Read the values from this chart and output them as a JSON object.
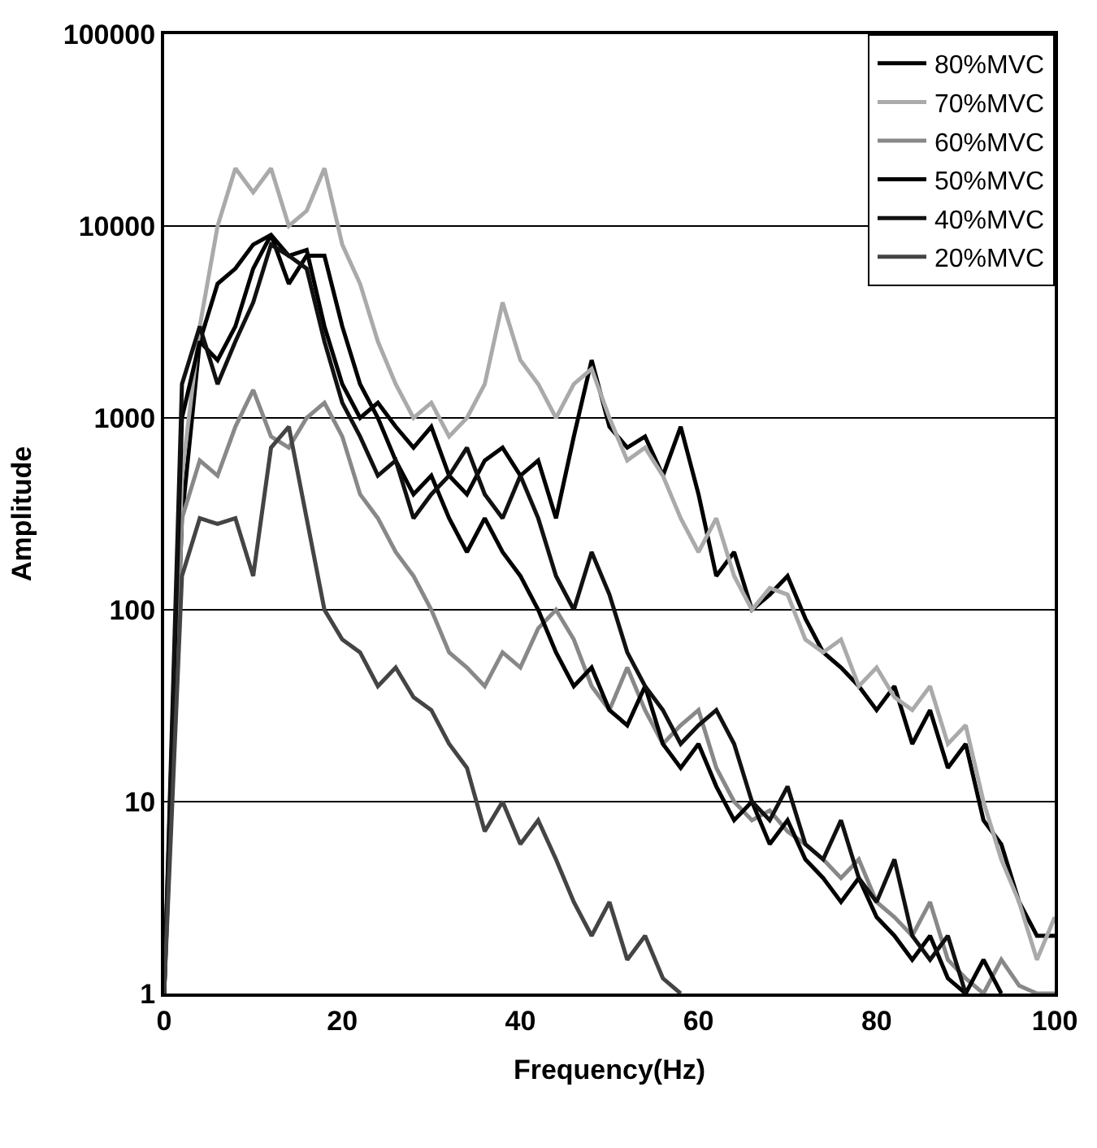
{
  "chart_data": {
    "type": "line",
    "xlabel": "Frequency(Hz)",
    "ylabel": "Amplitude",
    "log": "y",
    "x": [
      0,
      2,
      4,
      6,
      8,
      10,
      12,
      14,
      16,
      18,
      20,
      22,
      24,
      26,
      28,
      30,
      32,
      34,
      36,
      38,
      40,
      42,
      44,
      46,
      48,
      50,
      52,
      54,
      56,
      58,
      60,
      62,
      64,
      66,
      68,
      70,
      72,
      74,
      76,
      78,
      80,
      82,
      84,
      86,
      88,
      90,
      92,
      94,
      96,
      98,
      100
    ],
    "xlim": [
      0,
      100
    ],
    "xticks": [
      0,
      20,
      40,
      60,
      80,
      100
    ],
    "ylim": [
      1,
      100000
    ],
    "yticks": [
      1,
      10,
      100,
      1000,
      10000,
      100000
    ],
    "grid": "y",
    "legend": "top right",
    "line_style": "solid",
    "marker": "none",
    "series": [
      {
        "name": "80%MVC",
        "color": "#000000",
        "values": [
          1,
          300,
          2500,
          5000,
          6000,
          8000,
          9000,
          7000,
          7500,
          3000,
          1500,
          1000,
          1200,
          900,
          700,
          900,
          500,
          400,
          600,
          700,
          500,
          600,
          300,
          800,
          2000,
          900,
          700,
          800,
          500,
          900,
          400,
          150,
          200,
          100,
          120,
          150,
          90,
          60,
          50,
          40,
          30,
          40,
          20,
          30,
          15,
          20,
          8,
          6,
          3,
          2,
          2
        ]
      },
      {
        "name": "70%MVC",
        "color": "#aaaaaa",
        "values": [
          1,
          500,
          3000,
          10000,
          20000,
          15000,
          20000,
          10000,
          12000,
          20000,
          8000,
          5000,
          2500,
          1500,
          1000,
          1200,
          800,
          1000,
          1500,
          4000,
          2000,
          1500,
          1000,
          1500,
          1800,
          1000,
          600,
          700,
          500,
          300,
          200,
          300,
          150,
          100,
          130,
          120,
          70,
          60,
          70,
          40,
          50,
          35,
          30,
          40,
          20,
          25,
          10,
          5,
          3,
          1.5,
          2.5
        ]
      },
      {
        "name": "60%MVC",
        "color": "#888888",
        "values": [
          1,
          300,
          600,
          500,
          900,
          1400,
          800,
          700,
          1000,
          1200,
          800,
          400,
          300,
          200,
          150,
          100,
          60,
          50,
          40,
          60,
          50,
          80,
          100,
          70,
          40,
          30,
          50,
          30,
          20,
          25,
          30,
          15,
          10,
          8,
          9,
          7,
          6,
          5,
          4,
          5,
          3,
          2.5,
          2,
          3,
          1.5,
          1.2,
          1,
          1.5,
          1.1,
          1,
          1
        ]
      },
      {
        "name": "50%MVC",
        "color": "#000000",
        "values": [
          1,
          1000,
          2500,
          2000,
          3000,
          6000,
          9000,
          5000,
          7000,
          7000,
          3000,
          1500,
          1000,
          600,
          400,
          500,
          300,
          200,
          300,
          200,
          150,
          100,
          60,
          40,
          50,
          30,
          25,
          40,
          20,
          15,
          20,
          12,
          8,
          10,
          6,
          8,
          5,
          4,
          3,
          4,
          2.5,
          2,
          1.5,
          2,
          1.2,
          1,
          1.5,
          1,
          null,
          null,
          null
        ]
      },
      {
        "name": "40%MVC",
        "color": "#111111",
        "values": [
          1,
          1500,
          3000,
          1500,
          2500,
          4000,
          8000,
          7000,
          6000,
          2500,
          1200,
          800,
          500,
          600,
          300,
          400,
          500,
          700,
          400,
          300,
          500,
          300,
          150,
          100,
          200,
          120,
          60,
          40,
          30,
          20,
          25,
          30,
          20,
          10,
          8,
          12,
          6,
          5,
          8,
          4,
          3,
          5,
          2,
          1.5,
          2,
          1,
          null,
          null,
          null,
          null,
          null
        ]
      },
      {
        "name": "20%MVC",
        "color": "#444444",
        "values": [
          1,
          150,
          300,
          280,
          300,
          150,
          700,
          900,
          300,
          100,
          70,
          60,
          40,
          50,
          35,
          30,
          20,
          15,
          7,
          10,
          6,
          8,
          5,
          3,
          2,
          3,
          1.5,
          2,
          1.2,
          1,
          null,
          null,
          null,
          null,
          null,
          null,
          null,
          null,
          null,
          null,
          null,
          null,
          null,
          null,
          null,
          null,
          null,
          null,
          null,
          null,
          null
        ]
      }
    ]
  }
}
